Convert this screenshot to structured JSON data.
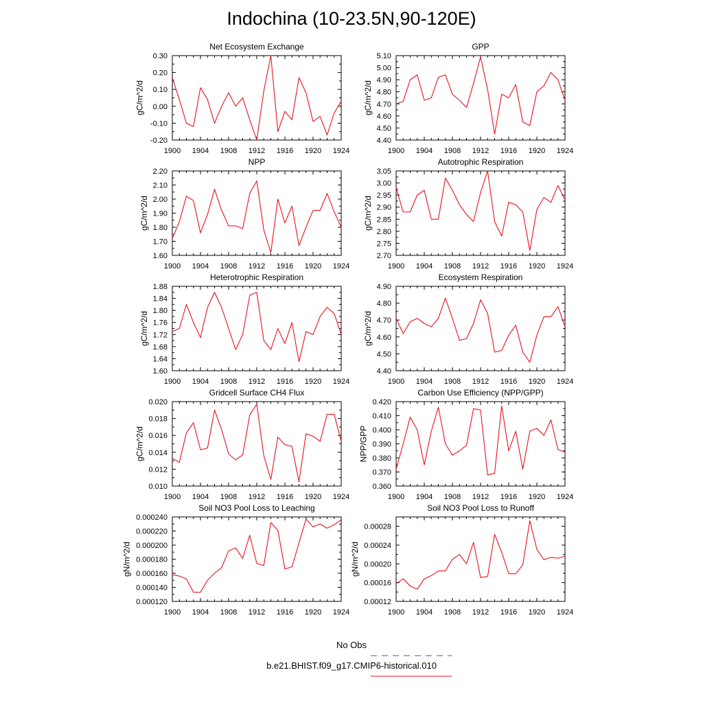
{
  "figure": {
    "title": "Indochina (10-23.5N,90-120E)",
    "legend": {
      "entries": [
        {
          "label": "No Obs",
          "color": "#4a4ac8",
          "dashed": true
        },
        {
          "label": "b.e21.BHIST.f09_g17.CMIP6-historical.010",
          "color": "#e8101c",
          "dashed": false
        }
      ]
    }
  },
  "chart_data": [
    {
      "type": "line",
      "title": "Net Ecosystem Exchange",
      "xlabel": "",
      "ylabel": "gC/m^2/d",
      "xlim": [
        1900,
        1924
      ],
      "ylim": [
        -0.2,
        0.3
      ],
      "grid": false,
      "xticks": [
        "1900",
        "1904",
        "1908",
        "1912",
        "1916",
        "1920",
        "1924"
      ],
      "yticks": [
        "-0.20",
        "-0.10",
        "0.00",
        "0.10",
        "0.20",
        "0.30"
      ],
      "series": [
        {
          "color": "#e8101c",
          "x": [
            1900,
            1901,
            1902,
            1903,
            1904,
            1905,
            1906,
            1907,
            1908,
            1909,
            1910,
            1911,
            1912,
            1913,
            1914,
            1915,
            1916,
            1917,
            1918,
            1919,
            1920,
            1921,
            1922,
            1923,
            1924
          ],
          "values": [
            0.17,
            0.04,
            -0.1,
            -0.12,
            0.11,
            0.04,
            -0.1,
            0.0,
            0.08,
            0.0,
            0.05,
            -0.08,
            -0.2,
            0.09,
            0.3,
            -0.15,
            -0.03,
            -0.08,
            0.17,
            0.08,
            -0.09,
            -0.06,
            -0.17,
            -0.04,
            0.03
          ]
        }
      ]
    },
    {
      "type": "line",
      "title": "GPP",
      "xlabel": "",
      "ylabel": "gC/m^2/d",
      "xlim": [
        1900,
        1924
      ],
      "ylim": [
        4.4,
        5.1
      ],
      "grid": false,
      "xticks": [
        "1900",
        "1904",
        "1908",
        "1912",
        "1916",
        "1920",
        "1924"
      ],
      "yticks": [
        "4.40",
        "4.50",
        "4.60",
        "4.70",
        "4.80",
        "4.90",
        "5.00",
        "5.10"
      ],
      "series": [
        {
          "color": "#e8101c",
          "x": [
            1900,
            1901,
            1902,
            1903,
            1904,
            1905,
            1906,
            1907,
            1908,
            1909,
            1910,
            1911,
            1912,
            1913,
            1914,
            1915,
            1916,
            1917,
            1918,
            1919,
            1920,
            1921,
            1922,
            1923,
            1924
          ],
          "values": [
            4.7,
            4.72,
            4.9,
            4.94,
            4.73,
            4.75,
            4.92,
            4.94,
            4.78,
            4.73,
            4.67,
            4.87,
            5.09,
            4.82,
            4.45,
            4.78,
            4.75,
            4.86,
            4.55,
            4.52,
            4.8,
            4.85,
            4.96,
            4.9,
            4.73
          ]
        }
      ]
    },
    {
      "type": "line",
      "title": "NPP",
      "xlabel": "",
      "ylabel": "gC/m^2/d",
      "xlim": [
        1900,
        1924
      ],
      "ylim": [
        1.6,
        2.2
      ],
      "grid": false,
      "xticks": [
        "1900",
        "1904",
        "1908",
        "1912",
        "1916",
        "1920",
        "1924"
      ],
      "yticks": [
        "1.60",
        "1.70",
        "1.80",
        "1.90",
        "2.00",
        "2.10",
        "2.20"
      ],
      "series": [
        {
          "color": "#e8101c",
          "x": [
            1900,
            1901,
            1902,
            1903,
            1904,
            1905,
            1906,
            1907,
            1908,
            1909,
            1910,
            1911,
            1912,
            1913,
            1914,
            1915,
            1916,
            1917,
            1918,
            1919,
            1920,
            1921,
            1922,
            1923,
            1924
          ],
          "values": [
            1.72,
            1.84,
            2.02,
            1.99,
            1.76,
            1.89,
            2.07,
            1.92,
            1.81,
            1.81,
            1.79,
            2.04,
            2.13,
            1.78,
            1.62,
            2.0,
            1.83,
            1.95,
            1.67,
            1.8,
            1.92,
            1.92,
            2.04,
            1.91,
            1.8
          ]
        }
      ]
    },
    {
      "type": "line",
      "title": "Autotrophic Respiration",
      "xlabel": "",
      "ylabel": "gC/m^2/d",
      "xlim": [
        1900,
        1924
      ],
      "ylim": [
        2.7,
        3.05
      ],
      "grid": false,
      "xticks": [
        "1900",
        "1904",
        "1908",
        "1912",
        "1916",
        "1920",
        "1924"
      ],
      "yticks": [
        "2.70",
        "2.75",
        "2.80",
        "2.85",
        "2.90",
        "2.95",
        "3.00",
        "3.05"
      ],
      "series": [
        {
          "color": "#e8101c",
          "x": [
            1900,
            1901,
            1902,
            1903,
            1904,
            1905,
            1906,
            1907,
            1908,
            1909,
            1910,
            1911,
            1912,
            1913,
            1914,
            1915,
            1916,
            1917,
            1918,
            1919,
            1920,
            1921,
            1922,
            1923,
            1924
          ],
          "values": [
            2.98,
            2.88,
            2.88,
            2.95,
            2.97,
            2.85,
            2.85,
            3.02,
            2.97,
            2.91,
            2.87,
            2.84,
            2.96,
            3.05,
            2.84,
            2.78,
            2.92,
            2.91,
            2.88,
            2.72,
            2.89,
            2.94,
            2.92,
            2.99,
            2.93
          ]
        }
      ]
    },
    {
      "type": "line",
      "title": "Heterotrophic Respiration",
      "xlabel": "",
      "ylabel": "gC/m^2/d",
      "xlim": [
        1900,
        1924
      ],
      "ylim": [
        1.6,
        1.88
      ],
      "grid": false,
      "xticks": [
        "1900",
        "1904",
        "1908",
        "1912",
        "1916",
        "1920",
        "1924"
      ],
      "yticks": [
        "1.60",
        "1.64",
        "1.68",
        "1.72",
        "1.76",
        "1.80",
        "1.84",
        "1.88"
      ],
      "series": [
        {
          "color": "#e8101c",
          "x": [
            1900,
            1901,
            1902,
            1903,
            1904,
            1905,
            1906,
            1907,
            1908,
            1909,
            1910,
            1911,
            1912,
            1913,
            1914,
            1915,
            1916,
            1917,
            1918,
            1919,
            1920,
            1921,
            1922,
            1923,
            1924
          ],
          "values": [
            1.73,
            1.74,
            1.82,
            1.76,
            1.71,
            1.81,
            1.86,
            1.81,
            1.74,
            1.67,
            1.72,
            1.85,
            1.86,
            1.7,
            1.67,
            1.74,
            1.69,
            1.76,
            1.63,
            1.73,
            1.72,
            1.78,
            1.81,
            1.79,
            1.72
          ]
        }
      ]
    },
    {
      "type": "line",
      "title": "Ecosystem Respiration",
      "xlabel": "",
      "ylabel": "gC/m^2/d",
      "xlim": [
        1900,
        1924
      ],
      "ylim": [
        4.4,
        4.9
      ],
      "grid": false,
      "xticks": [
        "1900",
        "1904",
        "1908",
        "1912",
        "1916",
        "1920",
        "1924"
      ],
      "yticks": [
        "4.40",
        "4.50",
        "4.60",
        "4.70",
        "4.80",
        "4.90"
      ],
      "series": [
        {
          "color": "#e8101c",
          "x": [
            1900,
            1901,
            1902,
            1903,
            1904,
            1905,
            1906,
            1907,
            1908,
            1909,
            1910,
            1911,
            1912,
            1913,
            1914,
            1915,
            1916,
            1917,
            1918,
            1919,
            1920,
            1921,
            1922,
            1923,
            1924
          ],
          "values": [
            4.71,
            4.62,
            4.69,
            4.71,
            4.68,
            4.66,
            4.71,
            4.83,
            4.71,
            4.58,
            4.59,
            4.68,
            4.82,
            4.74,
            4.51,
            4.52,
            4.61,
            4.67,
            4.51,
            4.45,
            4.61,
            4.72,
            4.72,
            4.78,
            4.66
          ]
        }
      ]
    },
    {
      "type": "line",
      "title": "Gridcell Surface CH4 Flux",
      "xlabel": "",
      "ylabel": "gC/m^2/d",
      "xlim": [
        1900,
        1924
      ],
      "ylim": [
        0.01,
        0.02
      ],
      "grid": false,
      "xticks": [
        "1900",
        "1904",
        "1908",
        "1912",
        "1916",
        "1920",
        "1924"
      ],
      "yticks": [
        "0.010",
        "0.012",
        "0.014",
        "0.016",
        "0.018",
        "0.020"
      ],
      "series": [
        {
          "color": "#e8101c",
          "x": [
            1900,
            1901,
            1902,
            1903,
            1904,
            1905,
            1906,
            1907,
            1908,
            1909,
            1910,
            1911,
            1912,
            1913,
            1914,
            1915,
            1916,
            1917,
            1918,
            1919,
            1920,
            1921,
            1922,
            1923,
            1924
          ],
          "values": [
            0.0133,
            0.0128,
            0.0163,
            0.0175,
            0.0143,
            0.0145,
            0.019,
            0.0167,
            0.0138,
            0.0131,
            0.0137,
            0.0184,
            0.0197,
            0.0136,
            0.0108,
            0.0158,
            0.0149,
            0.0147,
            0.0105,
            0.0162,
            0.0159,
            0.0153,
            0.0185,
            0.0185,
            0.0153
          ]
        }
      ]
    },
    {
      "type": "line",
      "title": "Carbon Use Efficiency (NPP/GPP)",
      "xlabel": "",
      "ylabel": "NPP/GPP",
      "xlim": [
        1900,
        1924
      ],
      "ylim": [
        0.36,
        0.42
      ],
      "grid": false,
      "xticks": [
        "1900",
        "1904",
        "1908",
        "1912",
        "1916",
        "1920",
        "1924"
      ],
      "yticks": [
        "0.360",
        "0.370",
        "0.380",
        "0.390",
        "0.400",
        "0.410",
        "0.420"
      ],
      "series": [
        {
          "color": "#e8101c",
          "x": [
            1900,
            1901,
            1902,
            1903,
            1904,
            1905,
            1906,
            1907,
            1908,
            1909,
            1910,
            1911,
            1912,
            1913,
            1914,
            1915,
            1916,
            1917,
            1918,
            1919,
            1920,
            1921,
            1922,
            1923,
            1924
          ],
          "values": [
            0.372,
            0.39,
            0.409,
            0.4,
            0.375,
            0.399,
            0.416,
            0.39,
            0.382,
            0.385,
            0.389,
            0.415,
            0.414,
            0.368,
            0.369,
            0.417,
            0.385,
            0.399,
            0.372,
            0.399,
            0.401,
            0.396,
            0.407,
            0.386,
            0.384
          ]
        }
      ]
    },
    {
      "type": "line",
      "title": "Soil NO3 Pool Loss to Leaching",
      "xlabel": "",
      "ylabel": "gN/m^2/d",
      "xlim": [
        1900,
        1924
      ],
      "ylim": [
        0.00012,
        0.00024
      ],
      "grid": false,
      "xticks": [
        "1900",
        "1904",
        "1908",
        "1912",
        "1916",
        "1920",
        "1924"
      ],
      "yticks": [
        "0.000120",
        "0.000140",
        "0.000160",
        "0.000180",
        "0.000200",
        "0.000220",
        "0.000240"
      ],
      "series": [
        {
          "color": "#e8101c",
          "x": [
            1900,
            1901,
            1902,
            1903,
            1904,
            1905,
            1906,
            1907,
            1908,
            1909,
            1910,
            1911,
            1912,
            1913,
            1914,
            1915,
            1916,
            1917,
            1918,
            1919,
            1920,
            1921,
            1922,
            1923,
            1924
          ],
          "values": [
            0.000158,
            0.000156,
            0.000152,
            0.000133,
            0.000133,
            0.00015,
            0.00016,
            0.000168,
            0.000192,
            0.000196,
            0.000181,
            0.000214,
            0.000174,
            0.000171,
            0.000232,
            0.000221,
            0.000166,
            0.000169,
            0.000203,
            0.000237,
            0.000226,
            0.00023,
            0.000224,
            0.000229,
            0.000236
          ]
        }
      ]
    },
    {
      "type": "line",
      "title": "Soil NO3 Pool Loss to Runoff",
      "xlabel": "",
      "ylabel": "gN/m^2/d",
      "xlim": [
        1900,
        1924
      ],
      "ylim": [
        0.00012,
        0.0003
      ],
      "grid": false,
      "xticks": [
        "1900",
        "1904",
        "1908",
        "1912",
        "1916",
        "1920",
        "1924"
      ],
      "yticks": [
        "0.00012",
        "0.00016",
        "0.00020",
        "0.00024",
        "0.00028"
      ],
      "series": [
        {
          "color": "#e8101c",
          "x": [
            1900,
            1901,
            1902,
            1903,
            1904,
            1905,
            1906,
            1907,
            1908,
            1909,
            1910,
            1911,
            1912,
            1913,
            1914,
            1915,
            1916,
            1917,
            1918,
            1919,
            1920,
            1921,
            1922,
            1923,
            1924
          ],
          "values": [
            0.000158,
            0.000168,
            0.000153,
            0.000146,
            0.000168,
            0.000175,
            0.000185,
            0.000185,
            0.00021,
            0.00022,
            0.0002,
            0.000246,
            0.000171,
            0.000173,
            0.000263,
            0.000225,
            0.000179,
            0.000179,
            0.000198,
            0.000292,
            0.000231,
            0.000209,
            0.000214,
            0.000212,
            0.000216
          ]
        }
      ]
    }
  ]
}
